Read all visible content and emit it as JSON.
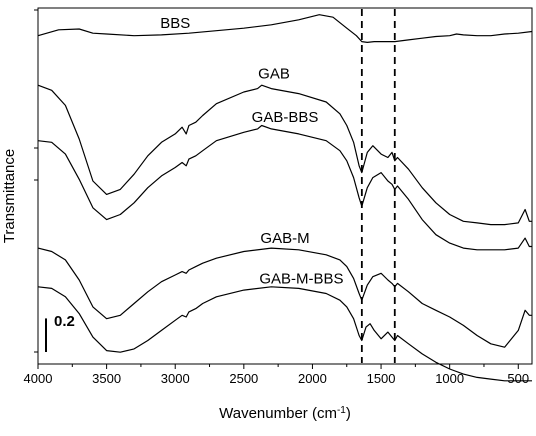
{
  "chart_data": {
    "type": "line",
    "title": "",
    "xlabel": "Wavenumber (cm",
    "xlabel_sup": "-1",
    "xlabel_close": ")",
    "ylabel": "Transmittance",
    "xlim": [
      4000,
      400
    ],
    "x_reversed": true,
    "ylim": [
      -0.12,
      2.0
    ],
    "xticks": [
      4000,
      3500,
      3000,
      2500,
      2000,
      1500,
      1000,
      500
    ],
    "grid": false,
    "legend": "none",
    "scale_bar": {
      "label": "0.2",
      "value": 0.2
    },
    "reference_lines": [
      1640,
      1400
    ],
    "series": [
      {
        "name": "BBS",
        "x": [
          4000,
          3850,
          3700,
          3600,
          3500,
          3300,
          3100,
          2900,
          2700,
          2500,
          2300,
          2100,
          1950,
          1850,
          1750,
          1680,
          1640,
          1600,
          1550,
          1500,
          1450,
          1400,
          1300,
          1200,
          1100,
          1000,
          950,
          900,
          800,
          700,
          600,
          500,
          400
        ],
        "y": [
          1.835,
          1.87,
          1.875,
          1.85,
          1.845,
          1.835,
          1.84,
          1.85,
          1.865,
          1.88,
          1.9,
          1.93,
          1.96,
          1.945,
          1.88,
          1.835,
          1.8,
          1.795,
          1.8,
          1.8,
          1.8,
          1.8,
          1.81,
          1.82,
          1.83,
          1.835,
          1.845,
          1.84,
          1.835,
          1.835,
          1.845,
          1.85,
          1.86
        ]
      },
      {
        "name": "GAB",
        "x": [
          4000,
          3900,
          3800,
          3700,
          3600,
          3500,
          3400,
          3300,
          3200,
          3100,
          3000,
          2950,
          2920,
          2900,
          2850,
          2800,
          2700,
          2500,
          2400,
          2370,
          2300,
          2100,
          1900,
          1800,
          1750,
          1700,
          1660,
          1640,
          1600,
          1560,
          1500,
          1450,
          1420,
          1400,
          1380,
          1300,
          1200,
          1100,
          1000,
          900,
          800,
          700,
          600,
          500,
          450,
          420,
          400
        ],
        "y": [
          1.54,
          1.51,
          1.42,
          1.22,
          0.97,
          0.89,
          0.92,
          1.01,
          1.12,
          1.2,
          1.25,
          1.29,
          1.25,
          1.3,
          1.32,
          1.36,
          1.43,
          1.5,
          1.52,
          1.54,
          1.52,
          1.49,
          1.44,
          1.37,
          1.3,
          1.2,
          1.06,
          1.02,
          1.14,
          1.18,
          1.13,
          1.11,
          1.14,
          1.09,
          1.11,
          1.04,
          0.93,
          0.84,
          0.77,
          0.73,
          0.72,
          0.71,
          0.71,
          0.72,
          0.8,
          0.73,
          0.73
        ]
      },
      {
        "name": "GAB-BBS",
        "x": [
          4000,
          3900,
          3800,
          3700,
          3600,
          3500,
          3400,
          3300,
          3200,
          3100,
          3000,
          2950,
          2920,
          2900,
          2850,
          2800,
          2700,
          2500,
          2400,
          2370,
          2300,
          2100,
          1900,
          1800,
          1750,
          1700,
          1660,
          1640,
          1600,
          1560,
          1500,
          1450,
          1420,
          1400,
          1380,
          1300,
          1200,
          1100,
          1000,
          900,
          800,
          700,
          600,
          500,
          450,
          420,
          400
        ],
        "y": [
          1.21,
          1.2,
          1.13,
          0.98,
          0.81,
          0.74,
          0.77,
          0.84,
          0.93,
          1.0,
          1.05,
          1.08,
          1.06,
          1.1,
          1.12,
          1.15,
          1.21,
          1.26,
          1.28,
          1.3,
          1.28,
          1.25,
          1.21,
          1.15,
          1.09,
          0.99,
          0.87,
          0.82,
          0.93,
          0.99,
          1.02,
          0.97,
          0.95,
          0.92,
          0.94,
          0.86,
          0.74,
          0.65,
          0.6,
          0.57,
          0.56,
          0.56,
          0.56,
          0.57,
          0.63,
          0.58,
          0.58
        ]
      },
      {
        "name": "GAB-M",
        "x": [
          4000,
          3900,
          3800,
          3700,
          3600,
          3500,
          3400,
          3300,
          3200,
          3100,
          3000,
          2950,
          2920,
          2900,
          2850,
          2800,
          2700,
          2500,
          2300,
          2100,
          1900,
          1800,
          1750,
          1700,
          1660,
          1640,
          1600,
          1560,
          1500,
          1450,
          1420,
          1400,
          1380,
          1300,
          1200,
          1100,
          1000,
          900,
          800,
          700,
          600,
          500,
          450,
          420,
          400
        ],
        "y": [
          0.57,
          0.55,
          0.5,
          0.38,
          0.22,
          0.15,
          0.17,
          0.24,
          0.31,
          0.37,
          0.41,
          0.43,
          0.42,
          0.44,
          0.46,
          0.48,
          0.51,
          0.55,
          0.57,
          0.56,
          0.53,
          0.5,
          0.46,
          0.39,
          0.3,
          0.26,
          0.35,
          0.4,
          0.42,
          0.38,
          0.36,
          0.34,
          0.36,
          0.31,
          0.24,
          0.2,
          0.16,
          0.11,
          0.05,
          0.0,
          -0.02,
          0.08,
          0.2,
          0.17,
          0.17
        ]
      },
      {
        "name": "GAB-M-BBS",
        "x": [
          4000,
          3900,
          3800,
          3700,
          3600,
          3500,
          3400,
          3300,
          3200,
          3100,
          3000,
          2950,
          2920,
          2900,
          2850,
          2800,
          2700,
          2500,
          2300,
          2100,
          1900,
          1800,
          1750,
          1700,
          1660,
          1640,
          1610,
          1580,
          1550,
          1500,
          1450,
          1420,
          1400,
          1380,
          1300,
          1200,
          1100,
          1000,
          900,
          800,
          700,
          600,
          500,
          450,
          400
        ],
        "y": [
          0.34,
          0.33,
          0.28,
          0.18,
          0.04,
          -0.04,
          -0.05,
          -0.03,
          0.02,
          0.08,
          0.14,
          0.17,
          0.16,
          0.19,
          0.21,
          0.24,
          0.28,
          0.32,
          0.34,
          0.33,
          0.3,
          0.26,
          0.22,
          0.15,
          0.05,
          0.02,
          0.1,
          0.12,
          0.08,
          0.03,
          0.07,
          0.04,
          0.02,
          0.05,
          0.0,
          -0.06,
          -0.11,
          -0.15,
          -0.18,
          -0.2,
          -0.21,
          -0.22,
          -0.22,
          -0.22,
          -0.22
        ]
      }
    ],
    "series_labels": [
      {
        "text": "BBS",
        "x": 3000,
        "y": 1.88
      },
      {
        "text": "GAB",
        "x": 2280,
        "y": 1.58
      },
      {
        "text": "GAB-BBS",
        "x": 2200,
        "y": 1.32
      },
      {
        "text": "GAB-M",
        "x": 2200,
        "y": 0.6
      },
      {
        "text": "GAB-M-BBS",
        "x": 2080,
        "y": 0.36
      }
    ]
  }
}
